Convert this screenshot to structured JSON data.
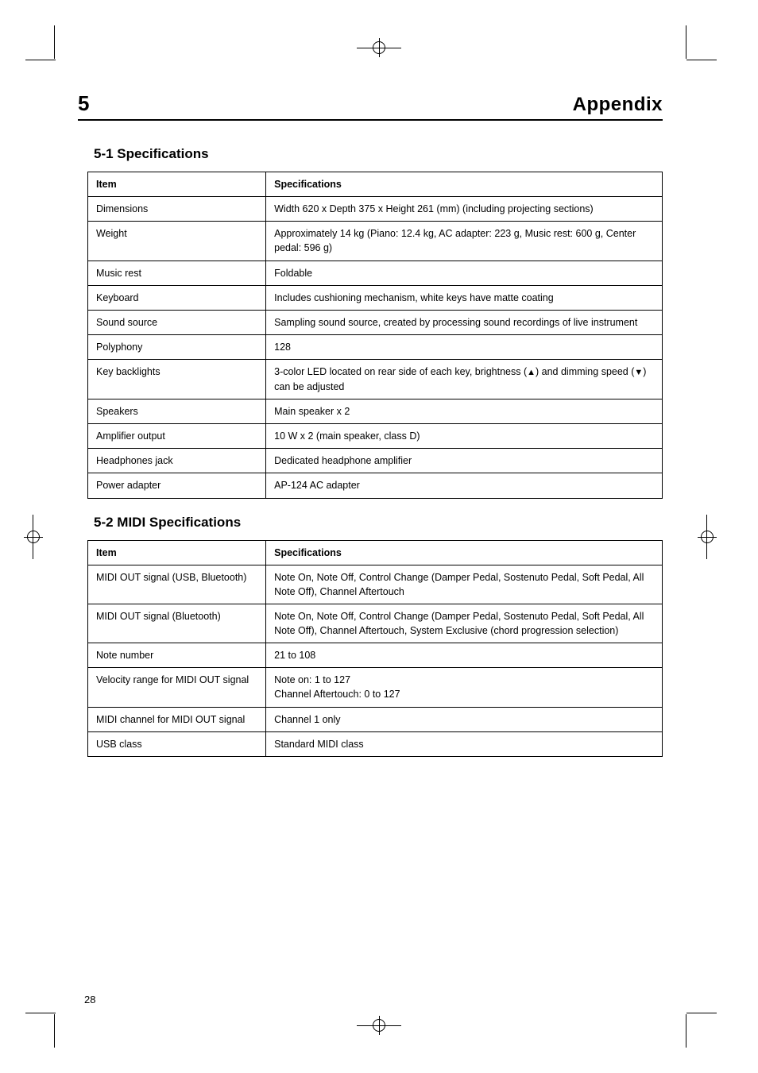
{
  "chapter_num": "5",
  "chapter_title": "Appendix",
  "section1": {
    "title": "5-1 Specifications",
    "headers": [
      "Item",
      "Specifications"
    ],
    "rows": [
      [
        "Dimensions",
        "Width 620 x Depth 375 x Height 261 (mm) (including projecting sections)"
      ],
      [
        "Weight",
        "Approximately 14 kg (Piano: 12.4 kg, AC adapter: 223 g, Music rest: 600 g, Center pedal: 596 g)"
      ],
      [
        "Music rest",
        "Foldable"
      ],
      [
        "Keyboard",
        "Includes cushioning mechanism, white keys have matte coating"
      ],
      [
        "Sound source",
        "Sampling sound source, created by processing sound recordings of live instrument"
      ],
      [
        "Polyphony",
        "128"
      ],
      [
        "Key backlights",
        "3-color LED located on rear side of each key, brightness (▲) and dimming speed (▼) can be adjusted"
      ],
      [
        "Speakers",
        "Main speaker x 2"
      ],
      [
        "Amplifier output",
        "10 W x 2 (main speaker, class D)"
      ],
      [
        "Headphones jack",
        "Dedicated headphone amplifier"
      ],
      [
        "Power adapter",
        "AP-124 AC adapter"
      ]
    ]
  },
  "section2": {
    "title": "5-2 MIDI Specifications",
    "headers": [
      "Item",
      "Specifications"
    ],
    "rows": [
      [
        "MIDI OUT signal (USB, Bluetooth)",
        "Note On, Note Off, Control Change (Damper Pedal, Sostenuto Pedal, Soft Pedal, All Note Off), Channel Aftertouch"
      ],
      [
        "MIDI OUT signal (Bluetooth)",
        "Note On, Note Off, Control Change (Damper Pedal, Sostenuto Pedal, Soft Pedal, All Note Off), Channel Aftertouch, System Exclusive (chord progression selection)"
      ],
      [
        "Note number",
        "21 to 108"
      ],
      [
        "Velocity range for MIDI OUT signal",
        "Note on: 1 to 127\nChannel Aftertouch: 0 to 127"
      ],
      [
        "MIDI channel for MIDI OUT signal",
        "Channel 1 only"
      ],
      [
        "USB class",
        "Standard MIDI class"
      ]
    ]
  },
  "page_number": "28"
}
